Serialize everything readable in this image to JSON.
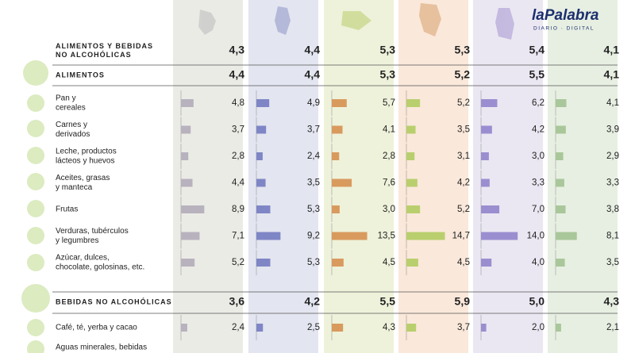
{
  "logo": {
    "name": "laPalabra",
    "tagline": "DIARIO · DIGITAL"
  },
  "table": {
    "total": {
      "lines": [
        "ALIMENTOS Y BEBIDAS",
        "NO ALCOHÓLICAS"
      ],
      "values": [
        {
          "value": 4.3,
          "label": "4,3"
        },
        {
          "value": 4.4,
          "label": "4,4"
        },
        {
          "value": 5.3,
          "label": "5,3"
        },
        {
          "value": 5.3,
          "label": "5,3"
        },
        {
          "value": 5.4,
          "label": "5,4"
        },
        {
          "value": 4.1,
          "label": "4,1"
        }
      ]
    },
    "food": {
      "lines": [
        "ALIMENTOS"
      ],
      "values": [
        {
          "value": 4.4,
          "label": "4,4"
        },
        {
          "value": 4.4,
          "label": "4,4"
        },
        {
          "value": 5.3,
          "label": "5,3"
        },
        {
          "value": 5.2,
          "label": "5,2"
        },
        {
          "value": 5.5,
          "label": "5,5"
        },
        {
          "value": 4.1,
          "label": "4,1"
        }
      ]
    },
    "food_items": [
      {
        "lines": [
          "Pan y",
          "cereales"
        ],
        "values": [
          {
            "value": 4.8,
            "label": "4,8"
          },
          {
            "value": 4.9,
            "label": "4,9"
          },
          {
            "value": 5.7,
            "label": "5,7"
          },
          {
            "value": 5.2,
            "label": "5,2"
          },
          {
            "value": 6.2,
            "label": "6,2"
          },
          {
            "value": 4.1,
            "label": "4,1"
          }
        ]
      },
      {
        "lines": [
          "Carnes y",
          "derivados"
        ],
        "values": [
          {
            "value": 3.7,
            "label": "3,7"
          },
          {
            "value": 3.7,
            "label": "3,7"
          },
          {
            "value": 4.1,
            "label": "4,1"
          },
          {
            "value": 3.5,
            "label": "3,5"
          },
          {
            "value": 4.2,
            "label": "4,2"
          },
          {
            "value": 3.9,
            "label": "3,9"
          }
        ]
      },
      {
        "lines": [
          "Leche, productos",
          "lácteos y huevos"
        ],
        "values": [
          {
            "value": 2.8,
            "label": "2,8"
          },
          {
            "value": 2.4,
            "label": "2,4"
          },
          {
            "value": 2.8,
            "label": "2,8"
          },
          {
            "value": 3.1,
            "label": "3,1"
          },
          {
            "value": 3.0,
            "label": "3,0"
          },
          {
            "value": 2.9,
            "label": "2,9"
          }
        ]
      },
      {
        "lines": [
          "Aceites, grasas",
          "y manteca"
        ],
        "values": [
          {
            "value": 4.4,
            "label": "4,4"
          },
          {
            "value": 3.5,
            "label": "3,5"
          },
          {
            "value": 7.6,
            "label": "7,6"
          },
          {
            "value": 4.2,
            "label": "4,2"
          },
          {
            "value": 3.3,
            "label": "3,3"
          },
          {
            "value": 3.3,
            "label": "3,3"
          }
        ]
      },
      {
        "lines": [
          "Frutas"
        ],
        "values": [
          {
            "value": 8.9,
            "label": "8,9"
          },
          {
            "value": 5.3,
            "label": "5,3"
          },
          {
            "value": 3.0,
            "label": "3,0"
          },
          {
            "value": 5.2,
            "label": "5,2"
          },
          {
            "value": 7.0,
            "label": "7,0"
          },
          {
            "value": 3.8,
            "label": "3,8"
          }
        ]
      },
      {
        "lines": [
          "Verduras, tubérculos",
          "y legumbres"
        ],
        "values": [
          {
            "value": 7.1,
            "label": "7,1"
          },
          {
            "value": 9.2,
            "label": "9,2"
          },
          {
            "value": 13.5,
            "label": "13,5"
          },
          {
            "value": 14.7,
            "label": "14,7"
          },
          {
            "value": 14.0,
            "label": "14,0"
          },
          {
            "value": 8.1,
            "label": "8,1"
          }
        ]
      },
      {
        "lines": [
          "Azúcar, dulces,",
          "chocolate, golosinas, etc."
        ],
        "values": [
          {
            "value": 5.2,
            "label": "5,2"
          },
          {
            "value": 5.3,
            "label": "5,3"
          },
          {
            "value": 4.5,
            "label": "4,5"
          },
          {
            "value": 4.5,
            "label": "4,5"
          },
          {
            "value": 4.0,
            "label": "4,0"
          },
          {
            "value": 3.5,
            "label": "3,5"
          }
        ]
      }
    ],
    "drinks": {
      "lines": [
        "BEBIDAS NO ALCOHÓLICAS"
      ],
      "values": [
        {
          "value": 3.6,
          "label": "3,6"
        },
        {
          "value": 4.2,
          "label": "4,2"
        },
        {
          "value": 5.5,
          "label": "5,5"
        },
        {
          "value": 5.9,
          "label": "5,9"
        },
        {
          "value": 5.0,
          "label": "5,0"
        },
        {
          "value": 4.3,
          "label": "4,3"
        }
      ]
    },
    "drink_items": [
      {
        "lines": [
          "Café, té, yerba y cacao"
        ],
        "values": [
          {
            "value": 2.4,
            "label": "2,4"
          },
          {
            "value": 2.5,
            "label": "2,5"
          },
          {
            "value": 4.3,
            "label": "4,3"
          },
          {
            "value": 3.7,
            "label": "3,7"
          },
          {
            "value": 2.0,
            "label": "2,0"
          },
          {
            "value": 2.1,
            "label": "2,1"
          }
        ]
      },
      {
        "lines": [
          "Aguas minerales, bebidas"
        ]
      }
    ]
  }
}
